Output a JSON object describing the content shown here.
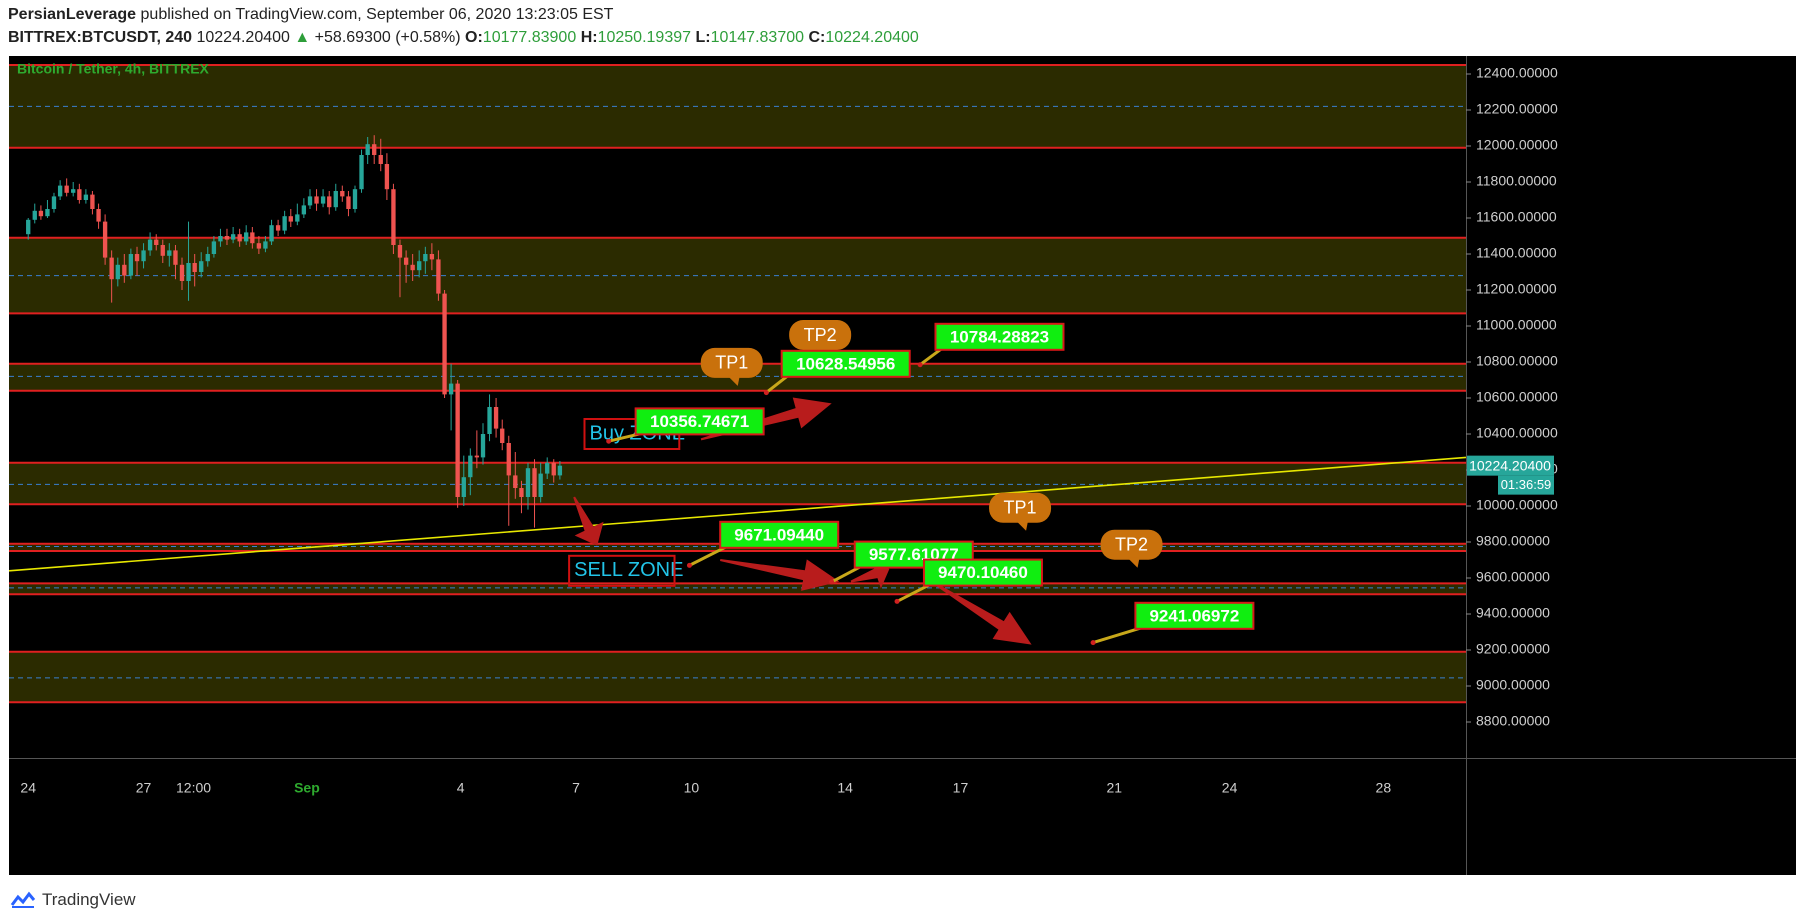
{
  "header": {
    "author": "PersianLeverage",
    "published_text": "published on TradingView.com, September 06, 2020 13:23:05 EST",
    "symbol": "BITTREX:BTCUSDT, 240",
    "last": "10224.20400",
    "change": "+58.69300 (+0.58%)",
    "open_label": "O:",
    "open": "10177.83900",
    "high_label": "H:",
    "high": "10250.19397",
    "low_label": "L:",
    "low": "10147.83700",
    "close_label": "C:",
    "close": "10224.20400"
  },
  "footer": {
    "brand": "TradingView"
  },
  "chart_data": {
    "type": "candlestick",
    "title": "Bitcoin / Tether, 4h, BITTREX",
    "ylim": [
      8600,
      12500
    ],
    "y_ticks": [
      "12400.00000",
      "12200.00000",
      "12000.00000",
      "11800.00000",
      "11600.00000",
      "11400.00000",
      "11200.00000",
      "11000.00000",
      "10800.00000",
      "10600.00000",
      "10400.00000",
      "10200.00000",
      "10000.00000",
      "9800.00000",
      "9600.00000",
      "9400.00000",
      "9200.00000",
      "9000.00000",
      "8800.00000"
    ],
    "y_tick_values": [
      12400,
      12200,
      12000,
      11800,
      11600,
      11400,
      11200,
      11000,
      10800,
      10600,
      10400,
      10200,
      10000,
      9800,
      9600,
      9400,
      9200,
      9000,
      8800
    ],
    "x_ticks": [
      {
        "label": "24",
        "day": 0
      },
      {
        "label": "27",
        "day": 3
      },
      {
        "label": "12:00",
        "day": 4.3
      },
      {
        "label": "Sep",
        "day": 7.25
      },
      {
        "label": "4",
        "day": 11.25
      },
      {
        "label": "7",
        "day": 14.25
      },
      {
        "label": "10",
        "day": 17.25
      },
      {
        "label": "14",
        "day": 21.25
      },
      {
        "label": "17",
        "day": 24.25
      },
      {
        "label": "21",
        "day": 28.25
      },
      {
        "label": "24",
        "day": 31.25
      },
      {
        "label": "28",
        "day": 35.25
      }
    ],
    "x_domain": [
      -0.5,
      37.4
    ],
    "last_price_tag": "10224.20400",
    "countdown_tag": "01:36:59",
    "zones": [
      {
        "top": 12450,
        "bottom": 11990,
        "mid": 12220
      },
      {
        "top": 11490,
        "bottom": 11070,
        "mid": 11280
      },
      {
        "top": 10790,
        "bottom": 10640,
        "mid": 10720
      },
      {
        "top": 10240,
        "bottom": 10010,
        "mid": 10120
      },
      {
        "top": 9790,
        "bottom": 9750,
        "mid": 9775
      },
      {
        "top": 9570,
        "bottom": 9510,
        "mid": 9545
      },
      {
        "top": 9190,
        "bottom": 8910,
        "mid": 9045
      }
    ],
    "trendline": {
      "from": {
        "day": -0.5,
        "price": 9640
      },
      "to": {
        "day": 37.4,
        "price": 10270
      }
    },
    "candles": [
      [
        0.0,
        11510,
        11590,
        11480,
        11600
      ],
      [
        0.17,
        11590,
        11640,
        11570,
        11680
      ],
      [
        0.33,
        11640,
        11610,
        11590,
        11670
      ],
      [
        0.5,
        11610,
        11650,
        11600,
        11700
      ],
      [
        0.67,
        11650,
        11720,
        11630,
        11740
      ],
      [
        0.83,
        11720,
        11780,
        11700,
        11810
      ],
      [
        1.0,
        11780,
        11740,
        11720,
        11820
      ],
      [
        1.17,
        11740,
        11760,
        11720,
        11800
      ],
      [
        1.33,
        11760,
        11700,
        11680,
        11790
      ],
      [
        1.5,
        11700,
        11730,
        11680,
        11760
      ],
      [
        1.67,
        11730,
        11650,
        11620,
        11750
      ],
      [
        1.83,
        11650,
        11580,
        11540,
        11680
      ],
      [
        2.0,
        11580,
        11380,
        11340,
        11620
      ],
      [
        2.17,
        11380,
        11260,
        11130,
        11420
      ],
      [
        2.33,
        11260,
        11340,
        11220,
        11380
      ],
      [
        2.5,
        11340,
        11280,
        11240,
        11400
      ],
      [
        2.67,
        11280,
        11400,
        11260,
        11430
      ],
      [
        2.83,
        11400,
        11360,
        11280,
        11440
      ],
      [
        3.0,
        11360,
        11420,
        11320,
        11460
      ],
      [
        3.17,
        11420,
        11480,
        11390,
        11520
      ],
      [
        3.33,
        11480,
        11450,
        11420,
        11510
      ],
      [
        3.5,
        11450,
        11390,
        11350,
        11480
      ],
      [
        3.67,
        11390,
        11420,
        11330,
        11460
      ],
      [
        3.83,
        11420,
        11340,
        11260,
        11450
      ],
      [
        4.0,
        11340,
        11250,
        11200,
        11380
      ],
      [
        4.17,
        11250,
        11350,
        11140,
        11580
      ],
      [
        4.33,
        11350,
        11300,
        11220,
        11400
      ],
      [
        4.5,
        11300,
        11360,
        11270,
        11410
      ],
      [
        4.67,
        11360,
        11400,
        11330,
        11440
      ],
      [
        4.83,
        11400,
        11470,
        11380,
        11500
      ],
      [
        5.0,
        11470,
        11500,
        11440,
        11540
      ],
      [
        5.17,
        11500,
        11480,
        11450,
        11540
      ],
      [
        5.33,
        11480,
        11510,
        11460,
        11550
      ],
      [
        5.5,
        11510,
        11470,
        11440,
        11540
      ],
      [
        5.67,
        11470,
        11520,
        11450,
        11560
      ],
      [
        5.83,
        11520,
        11460,
        11430,
        11550
      ],
      [
        6.0,
        11460,
        11430,
        11400,
        11500
      ],
      [
        6.17,
        11430,
        11470,
        11410,
        11500
      ],
      [
        6.33,
        11470,
        11560,
        11450,
        11590
      ],
      [
        6.5,
        11560,
        11530,
        11500,
        11590
      ],
      [
        6.67,
        11530,
        11610,
        11510,
        11640
      ],
      [
        6.83,
        11610,
        11580,
        11550,
        11650
      ],
      [
        7.0,
        11580,
        11620,
        11560,
        11680
      ],
      [
        7.17,
        11620,
        11670,
        11600,
        11710
      ],
      [
        7.33,
        11670,
        11720,
        11650,
        11760
      ],
      [
        7.5,
        11720,
        11680,
        11640,
        11760
      ],
      [
        7.67,
        11680,
        11720,
        11660,
        11760
      ],
      [
        7.83,
        11720,
        11660,
        11620,
        11750
      ],
      [
        8.0,
        11660,
        11750,
        11640,
        11790
      ],
      [
        8.17,
        11750,
        11720,
        11690,
        11780
      ],
      [
        8.33,
        11720,
        11650,
        11610,
        11750
      ],
      [
        8.5,
        11650,
        11760,
        11630,
        11780
      ],
      [
        8.67,
        11760,
        11950,
        11740,
        11980
      ],
      [
        8.83,
        11950,
        12010,
        11900,
        12050
      ],
      [
        9.0,
        12010,
        11950,
        11900,
        12060
      ],
      [
        9.17,
        11950,
        11900,
        11860,
        12040
      ],
      [
        9.33,
        11900,
        11760,
        11700,
        11960
      ],
      [
        9.5,
        11760,
        11450,
        11400,
        11790
      ],
      [
        9.67,
        11450,
        11380,
        11160,
        11480
      ],
      [
        9.83,
        11380,
        11340,
        11240,
        11420
      ],
      [
        10.0,
        11340,
        11310,
        11250,
        11400
      ],
      [
        10.17,
        11310,
        11360,
        11270,
        11420
      ],
      [
        10.33,
        11360,
        11400,
        11290,
        11440
      ],
      [
        10.5,
        11400,
        11370,
        11310,
        11460
      ],
      [
        10.67,
        11370,
        11180,
        11140,
        11420
      ],
      [
        10.83,
        11180,
        10620,
        10600,
        11200
      ],
      [
        11.0,
        10620,
        10680,
        10420,
        10790
      ],
      [
        11.17,
        10680,
        10050,
        9990,
        10700
      ],
      [
        11.33,
        10050,
        10160,
        10000,
        10280
      ],
      [
        11.5,
        10160,
        10280,
        10060,
        10320
      ],
      [
        11.67,
        10280,
        10270,
        10210,
        10420
      ],
      [
        11.83,
        10270,
        10400,
        10230,
        10460
      ],
      [
        12.0,
        10400,
        10550,
        10360,
        10620
      ],
      [
        12.17,
        10550,
        10430,
        10380,
        10600
      ],
      [
        12.33,
        10430,
        10350,
        10310,
        10480
      ],
      [
        12.5,
        10350,
        10170,
        9890,
        10390
      ],
      [
        12.67,
        10170,
        10100,
        10040,
        10300
      ],
      [
        12.83,
        10100,
        10050,
        9960,
        10140
      ],
      [
        13.0,
        10050,
        10210,
        9980,
        10240
      ],
      [
        13.17,
        10210,
        10050,
        9880,
        10260
      ],
      [
        13.33,
        10050,
        10180,
        10020,
        10240
      ],
      [
        13.5,
        10180,
        10240,
        10150,
        10270
      ],
      [
        13.67,
        10240,
        10170,
        10130,
        10260
      ],
      [
        13.83,
        10170,
        10224,
        10147,
        10250
      ]
    ],
    "arrows": [
      {
        "from": {
          "day": 14.2,
          "price": 10050
        },
        "to": {
          "day": 14.8,
          "price": 9780
        }
      },
      {
        "from": {
          "day": 17.5,
          "price": 10370
        },
        "to": {
          "day": 20.9,
          "price": 10570
        }
      },
      {
        "from": {
          "day": 18.0,
          "price": 9700
        },
        "to": {
          "day": 21.1,
          "price": 9580
        }
      },
      {
        "from": {
          "day": 21.4,
          "price": 9580
        },
        "to": {
          "day": 22.4,
          "price": 9650
        }
      },
      {
        "from": {
          "day": 23.5,
          "price": 9580
        },
        "to": {
          "day": 26.1,
          "price": 9230
        }
      }
    ],
    "labels": [
      {
        "text": "10356.74671",
        "day": 15.8,
        "price": 10470,
        "kind": "price",
        "anchor": {
          "day": 15.1,
          "price": 10360
        }
      },
      {
        "text": "10628.54956",
        "day": 19.6,
        "price": 10790,
        "kind": "price",
        "anchor": {
          "day": 19.2,
          "price": 10630
        }
      },
      {
        "text": "10784.28823",
        "day": 23.6,
        "price": 10940,
        "kind": "price",
        "anchor": {
          "day": 23.2,
          "price": 10785
        }
      },
      {
        "text": "9671.09440",
        "day": 18.0,
        "price": 9840,
        "kind": "price",
        "anchor": {
          "day": 17.2,
          "price": 9670
        }
      },
      {
        "text": "9577.61077",
        "day": 21.5,
        "price": 9730,
        "kind": "price",
        "anchor": {
          "day": 20.9,
          "price": 9578
        }
      },
      {
        "text": "9470.10460",
        "day": 23.3,
        "price": 9630,
        "kind": "price",
        "anchor": {
          "day": 22.6,
          "price": 9470
        }
      },
      {
        "text": "9241.06972",
        "day": 28.8,
        "price": 9390,
        "kind": "price",
        "anchor": {
          "day": 27.7,
          "price": 9241
        }
      }
    ],
    "targets": [
      {
        "text": "TP1",
        "day": 18.3,
        "price": 10795
      },
      {
        "text": "TP2",
        "day": 20.6,
        "price": 10950
      },
      {
        "text": "TP1",
        "day": 25.8,
        "price": 9990
      },
      {
        "text": "TP2",
        "day": 28.7,
        "price": 9785
      }
    ],
    "zone_texts": [
      {
        "text": "Buy ZONE",
        "day": 14.6,
        "price": 10400,
        "color": "#22c4e8"
      },
      {
        "text": "SELL ZONE",
        "day": 14.2,
        "price": 9640,
        "color": "#22c4e8"
      }
    ]
  }
}
